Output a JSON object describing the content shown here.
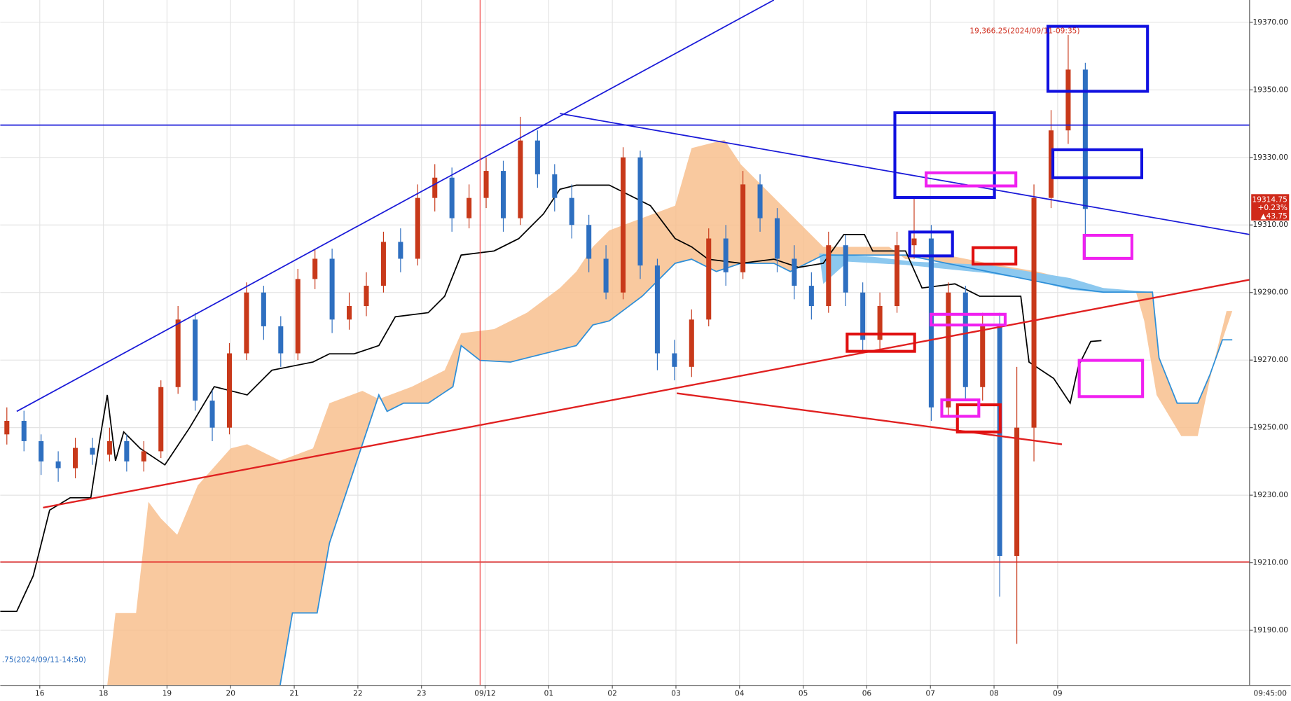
{
  "chart_data": {
    "type": "candlestick",
    "open": [
      19248,
      19252,
      19246,
      19240,
      19238,
      19244,
      19242,
      19246,
      19240,
      19243,
      19262,
      19282,
      19258,
      19250,
      19272,
      19290,
      19280,
      19272,
      19294,
      19300,
      19282,
      19286,
      19292,
      19305,
      19300,
      19318,
      19324,
      19312,
      19318,
      19326,
      19312,
      19335,
      19325,
      19318,
      19310,
      19300,
      19290,
      19330,
      19298,
      19272,
      19268,
      19282,
      19306,
      19296,
      19322,
      19312,
      19300,
      19292,
      19286,
      19304,
      19290,
      19276,
      19286,
      19304,
      19306,
      19256,
      19290,
      19262,
      19280,
      19212,
      19250,
      19318,
      19338,
      19356
    ],
    "high": [
      19256,
      19255,
      19248,
      19243,
      19247,
      19247,
      19250,
      19248,
      19246,
      19264,
      19286,
      19284,
      19261,
      19275,
      19293,
      19292,
      19283,
      19297,
      19303,
      19303,
      19290,
      19296,
      19308,
      19309,
      19322,
      19328,
      19327,
      19322,
      19330,
      19329,
      19342,
      19338,
      19328,
      19322,
      19313,
      19304,
      19333,
      19332,
      19300,
      19276,
      19285,
      19309,
      19310,
      19326,
      19325,
      19315,
      19304,
      19296,
      19308,
      19307,
      19293,
      19290,
      19308,
      19318,
      19310,
      19293,
      19292,
      19284,
      19284,
      19268,
      19322,
      19344,
      19366.25,
      19358
    ],
    "low": [
      19245,
      19243,
      19236,
      19234,
      19235,
      19239,
      19240,
      19237,
      19237,
      19241,
      19260,
      19255,
      19246,
      19248,
      19270,
      19276,
      19268,
      19270,
      19291,
      19278,
      19279,
      19283,
      19290,
      19296,
      19298,
      19314,
      19308,
      19309,
      19315,
      19308,
      19310,
      19321,
      19314,
      19306,
      19296,
      19288,
      19288,
      19294,
      19267,
      19264,
      19265,
      19280,
      19292,
      19294,
      19308,
      19296,
      19288,
      19282,
      19284,
      19286,
      19272,
      19273,
      19284,
      19300,
      19252,
      19253,
      19258,
      19258,
      19200,
      19186,
      19240,
      19315,
      19334,
      19300
    ],
    "close": [
      19252,
      19246,
      19240,
      19238,
      19244,
      19242,
      19246,
      19240,
      19243,
      19262,
      19282,
      19258,
      19250,
      19272,
      19290,
      19280,
      19272,
      19294,
      19300,
      19282,
      19286,
      19292,
      19305,
      19300,
      19318,
      19324,
      19312,
      19318,
      19326,
      19312,
      19335,
      19325,
      19318,
      19310,
      19300,
      19290,
      19330,
      19298,
      19272,
      19268,
      19282,
      19306,
      19296,
      19322,
      19312,
      19300,
      19292,
      19286,
      19304,
      19290,
      19276,
      19286,
      19304,
      19306,
      19256,
      19290,
      19262,
      19280,
      19212,
      19250,
      19318,
      19338,
      19356,
      19314.75
    ],
    "up_color": "#c8391a",
    "down_color": "#2e6fc0",
    "categories": [
      "16",
      "18",
      "19",
      "20",
      "21",
      "22",
      "23",
      "09/12",
      "01",
      "02",
      "03",
      "04",
      "05",
      "06",
      "07",
      "08",
      "09"
    ],
    "ylim": [
      19173.7,
      19376.6
    ],
    "yticks": [
      {
        "value": 19190,
        "label": "19190.00"
      },
      {
        "value": 19210,
        "label": "19210.00"
      },
      {
        "value": 19230,
        "label": "19230.00"
      },
      {
        "value": 19250,
        "label": "19250.00"
      },
      {
        "value": 19270,
        "label": "19270.00"
      },
      {
        "value": 19290,
        "label": "19290.00"
      },
      {
        "value": 19310,
        "label": "19310.00"
      },
      {
        "value": 19330,
        "label": "19330.00"
      },
      {
        "value": 19350,
        "label": "19350.00"
      },
      {
        "value": 19370,
        "label": "19370.00"
      }
    ],
    "grid": true
  },
  "annotations": {
    "high_note": "19,366.25(2024/09/11-09:35)",
    "low_note": ".75(2024/09/11-14:50)",
    "time_label": "09:45:00",
    "price_badge": {
      "price": "19314.75",
      "change_pct": "+0.23%",
      "change": "▲43.75"
    }
  }
}
